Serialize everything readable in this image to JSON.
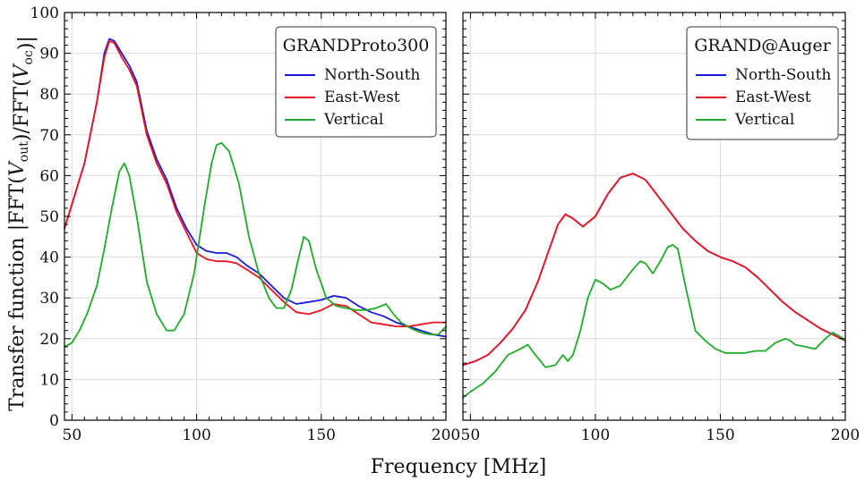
{
  "chart_data": [
    {
      "type": "line",
      "legend_title": "GRANDProto300",
      "xlabel": "Frequency [MHz]",
      "ylabel": "Transfer function |FFT(V_out)/FFT(V_oc)|",
      "xlim": [
        47,
        200
      ],
      "ylim": [
        0,
        100
      ],
      "xticks": [
        50,
        100,
        150,
        200
      ],
      "yticks": [
        0,
        10,
        20,
        30,
        40,
        50,
        60,
        70,
        80,
        90,
        100
      ],
      "legend_position": "top-right",
      "series": [
        {
          "name": "North-South",
          "color": "#1a1adb",
          "x": [
            47,
            50,
            55,
            60,
            63,
            65,
            67,
            70,
            73,
            76,
            80,
            84,
            88,
            92,
            96,
            100,
            104,
            108,
            112,
            116,
            120,
            125,
            130,
            135,
            140,
            145,
            150,
            155,
            160,
            165,
            170,
            175,
            180,
            185,
            190,
            195,
            200
          ],
          "y": [
            47,
            53,
            63,
            78,
            90,
            93.5,
            93,
            90,
            87,
            83,
            71,
            64,
            59,
            52,
            47,
            43,
            41.5,
            41,
            41,
            40,
            38,
            36,
            33,
            30,
            28.5,
            29,
            29.5,
            30.5,
            30,
            28,
            26.5,
            25.5,
            24,
            23,
            22,
            21,
            20.5
          ]
        },
        {
          "name": "East-West",
          "color": "#e8141e",
          "x": [
            47,
            50,
            55,
            60,
            63,
            65,
            67,
            70,
            73,
            76,
            80,
            84,
            88,
            92,
            96,
            100,
            104,
            108,
            112,
            116,
            120,
            125,
            130,
            135,
            140,
            145,
            150,
            155,
            160,
            165,
            170,
            175,
            180,
            185,
            190,
            195,
            200
          ],
          "y": [
            47,
            53,
            63,
            78,
            89,
            93,
            92.5,
            89,
            86,
            82,
            70,
            63,
            58,
            51,
            46,
            41,
            39.5,
            39,
            39,
            38.5,
            37,
            35,
            32,
            29,
            26.5,
            26,
            27,
            28.5,
            28,
            26,
            24,
            23.5,
            23,
            23,
            23.5,
            24,
            24
          ]
        },
        {
          "name": "Vertical",
          "color": "#1faa2a",
          "x": [
            47,
            50,
            53,
            56,
            60,
            63,
            66,
            69,
            71,
            73,
            76,
            80,
            84,
            88,
            91,
            95,
            99,
            103,
            106,
            108,
            110,
            113,
            117,
            121,
            125,
            129,
            132,
            135,
            138,
            141,
            143,
            145,
            148,
            152,
            156,
            160,
            164,
            168,
            172,
            176,
            179,
            182,
            186,
            190,
            194,
            197,
            200
          ],
          "y": [
            18,
            19,
            22,
            26,
            33,
            42,
            52,
            61,
            63,
            60,
            50,
            34,
            26,
            22,
            22,
            26,
            36,
            52,
            63,
            67.5,
            68,
            66,
            58,
            45,
            36,
            30,
            27.5,
            27.5,
            32,
            40,
            45,
            44,
            37,
            30,
            28,
            27.5,
            27,
            27,
            27.5,
            28.5,
            26,
            24,
            22.5,
            21.5,
            21,
            21,
            23
          ]
        }
      ]
    },
    {
      "type": "line",
      "legend_title": "GRAND@Auger",
      "xlabel": "Frequency [MHz]",
      "xlim": [
        47,
        200
      ],
      "ylim": [
        0,
        100
      ],
      "xticks": [
        50,
        100,
        150,
        200
      ],
      "legend_position": "top-right",
      "series": [
        {
          "name": "North-South",
          "color": "#1a1adb",
          "x": [
            47,
            52,
            57,
            62,
            67,
            72,
            77,
            81,
            85,
            88,
            91,
            95,
            100,
            105,
            110,
            115,
            120,
            125,
            130,
            135,
            140,
            145,
            150,
            155,
            160,
            165,
            170,
            175,
            180,
            185,
            190,
            195,
            200
          ],
          "y": [
            13.5,
            14.5,
            16,
            19,
            22.5,
            27,
            34,
            41,
            48,
            50.5,
            49.5,
            47.5,
            50,
            55.5,
            59.5,
            60.5,
            59,
            55,
            51,
            47,
            44,
            41.5,
            40,
            39,
            37.5,
            35,
            32,
            29,
            26.5,
            24.5,
            22.5,
            21,
            19.5
          ]
        },
        {
          "name": "East-West",
          "color": "#e8141e",
          "x": [
            47,
            52,
            57,
            62,
            67,
            72,
            77,
            81,
            85,
            88,
            91,
            95,
            100,
            105,
            110,
            115,
            120,
            125,
            130,
            135,
            140,
            145,
            150,
            155,
            160,
            165,
            170,
            175,
            180,
            185,
            190,
            195,
            200
          ],
          "y": [
            13.5,
            14.5,
            16,
            19,
            22.5,
            27,
            34,
            41,
            48,
            50.5,
            49.5,
            47.5,
            50,
            55.5,
            59.5,
            60.5,
            59,
            55,
            51,
            47,
            44,
            41.5,
            40,
            39,
            37.5,
            35,
            32,
            29,
            26.5,
            24.5,
            22.5,
            21,
            19.5
          ]
        },
        {
          "name": "Vertical",
          "color": "#1faa2a",
          "x": [
            47,
            50,
            55,
            60,
            65,
            70,
            73,
            76,
            80,
            84,
            87,
            89,
            91,
            94,
            97,
            100,
            103,
            106,
            110,
            115,
            118,
            120,
            123,
            126,
            129,
            131,
            133,
            136,
            140,
            144,
            148,
            152,
            156,
            160,
            164,
            168,
            172,
            176,
            178,
            180,
            184,
            188,
            192,
            195,
            198,
            200
          ],
          "y": [
            5.5,
            7,
            9,
            12,
            16,
            17.5,
            18.5,
            16,
            13,
            13.5,
            16,
            14.5,
            16,
            22,
            30,
            34.5,
            33.5,
            32,
            33,
            37,
            39,
            38.5,
            36,
            39,
            42.5,
            43,
            42,
            33,
            22,
            19.5,
            17.5,
            16.5,
            16.5,
            16.5,
            17,
            17,
            19,
            20,
            19.5,
            18.5,
            18,
            17.5,
            20,
            21.5,
            20.5,
            19.5
          ]
        }
      ]
    }
  ]
}
